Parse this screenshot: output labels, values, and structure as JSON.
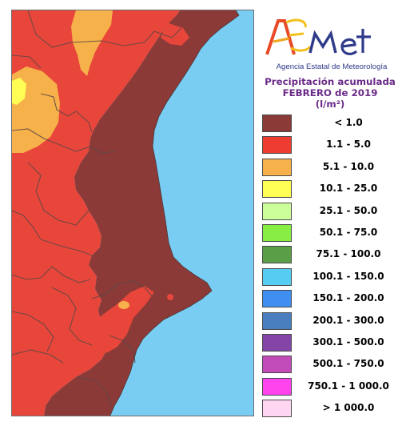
{
  "header": {
    "logo_text": "AEMet",
    "agency": "Agencia Estatal de Meteorología",
    "title_line1": "Precipitación acumulada",
    "title_line2": "FEBRERO de 2019",
    "unit": "(l/m²)"
  },
  "legend": [
    {
      "label": "< 1.0",
      "color": "#8b3a38"
    },
    {
      "label": "1.1 - 5.0",
      "color": "#ee3c33"
    },
    {
      "label": "5.1 - 10.0",
      "color": "#f6b14a"
    },
    {
      "label": "10.1 - 25.0",
      "color": "#ffff55"
    },
    {
      "label": "25.1 - 50.0",
      "color": "#ccff99"
    },
    {
      "label": "50.1 - 75.0",
      "color": "#88ee44"
    },
    {
      "label": "75.1 - 100.0",
      "color": "#5a9f48"
    },
    {
      "label": "100.1 - 150.0",
      "color": "#55ccf2"
    },
    {
      "label": "150.1 - 200.0",
      "color": "#3f8ff0"
    },
    {
      "label": "200.1 - 300.0",
      "color": "#4a7fbf"
    },
    {
      "label": "300.1 - 500.0",
      "color": "#8544a7"
    },
    {
      "label": "500.1 - 750.0",
      "color": "#c14bb9"
    },
    {
      "label": "750.1 - 1 000.0",
      "color": "#ff44ee"
    },
    {
      "label": "> 1 000.0",
      "color": "#ffd6f2"
    }
  ],
  "map": {
    "sea_color": "#79cdf3",
    "outside_color": "#e8463a",
    "region_color": "#8b3a38",
    "dry_color": "#f6b14a"
  }
}
